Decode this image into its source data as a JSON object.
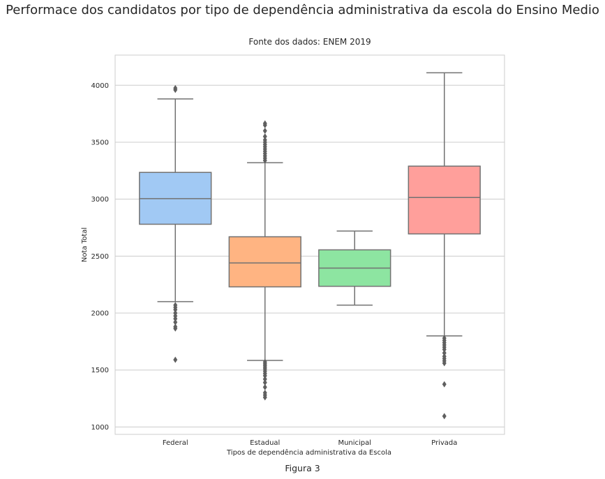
{
  "title": "Performace dos candidatos por tipo de dependência administrativa da escola do Ensino Medio",
  "caption": "Figura 3",
  "chart_data": {
    "type": "box",
    "title": "Fonte dos dados: ENEM 2019",
    "xlabel": "Tipos de dependência administrativa da Escola",
    "ylabel": "Nota Total",
    "ylim": [
      935,
      4265
    ],
    "yticks": [
      1000,
      1500,
      2000,
      2500,
      3000,
      3500,
      4000
    ],
    "grid": "horizontal",
    "categories": [
      "Federal",
      "Estadual",
      "Municipal",
      "Privada"
    ],
    "series": [
      {
        "category": "Federal",
        "color": "#a1c9f4",
        "whisker_low": 2100,
        "q1": 2780,
        "median": 3005,
        "q3": 3235,
        "whisker_high": 3880,
        "outliers": [
          3960,
          3975,
          2070,
          2050,
          2030,
          2000,
          1975,
          1950,
          1920,
          1880,
          1865,
          1590
        ]
      },
      {
        "category": "Estadual",
        "color": "#ffb482",
        "whisker_low": 1585,
        "q1": 2230,
        "median": 2440,
        "q3": 2670,
        "whisker_high": 3320,
        "outliers": [
          3340,
          3360,
          3380,
          3400,
          3420,
          3440,
          3460,
          3480,
          3500,
          3520,
          3550,
          3600,
          3650,
          3665,
          1570,
          1555,
          1540,
          1525,
          1510,
          1490,
          1470,
          1450,
          1420,
          1390,
          1350,
          1300,
          1280,
          1260
        ]
      },
      {
        "category": "Municipal",
        "color": "#8de5a1",
        "whisker_low": 2070,
        "q1": 2235,
        "median": 2395,
        "q3": 2555,
        "whisker_high": 2720,
        "outliers": []
      },
      {
        "category": "Privada",
        "color": "#ff9f9b",
        "whisker_low": 1800,
        "q1": 2695,
        "median": 3015,
        "q3": 3290,
        "whisker_high": 4110,
        "outliers": [
          1780,
          1760,
          1740,
          1720,
          1700,
          1680,
          1650,
          1620,
          1600,
          1580,
          1560,
          1375,
          1095
        ]
      }
    ]
  }
}
